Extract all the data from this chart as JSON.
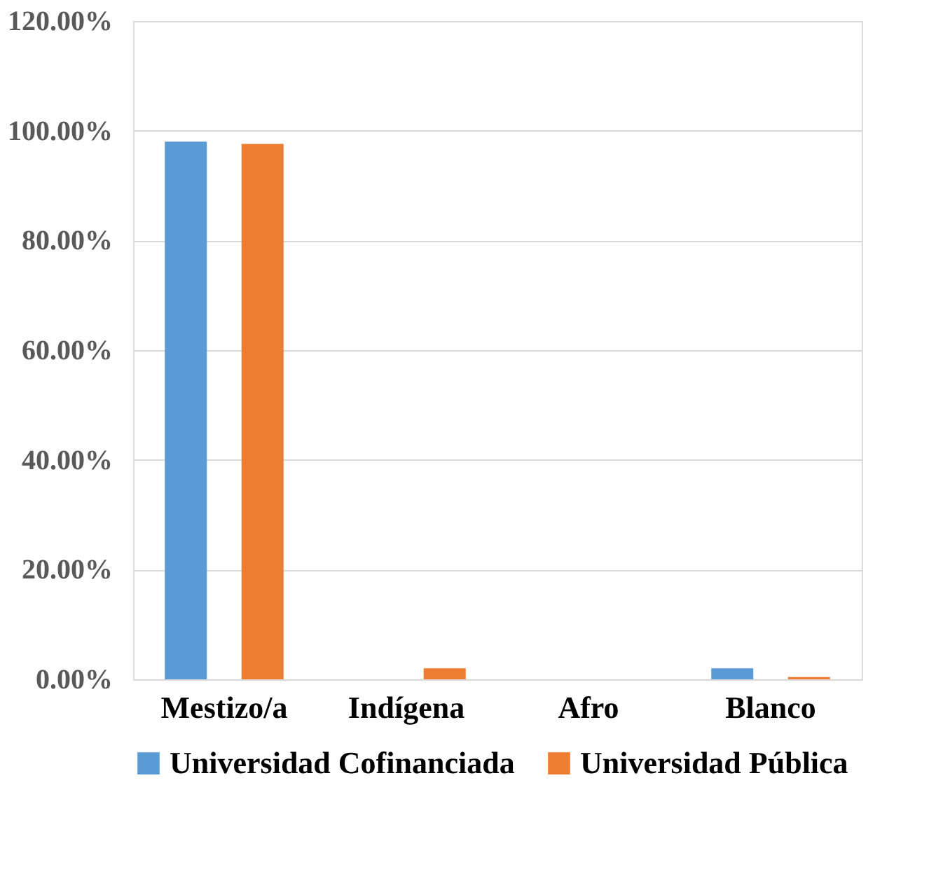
{
  "chart_data": {
    "type": "bar",
    "categories": [
      "Mestizo/a",
      "Indígena",
      "Afro",
      "Blanco"
    ],
    "series": [
      {
        "name": "Universidad Cofinanciada",
        "color": "#5b9bd5",
        "values": [
          98,
          0,
          0,
          2
        ]
      },
      {
        "name": "Universidad Pública",
        "color": "#ed7d31",
        "values": [
          97.6,
          2,
          0,
          0.4
        ]
      }
    ],
    "ylim": [
      0,
      120
    ],
    "yticks": [
      {
        "value": 0,
        "label": "0.00%"
      },
      {
        "value": 20,
        "label": "20.00%"
      },
      {
        "value": 40,
        "label": "40.00%"
      },
      {
        "value": 60,
        "label": "60.00%"
      },
      {
        "value": 80,
        "label": "80.00%"
      },
      {
        "value": 100,
        "label": "100.00%"
      },
      {
        "value": 120,
        "label": "120.00%"
      }
    ],
    "grid": "y",
    "legend": "bottom"
  }
}
